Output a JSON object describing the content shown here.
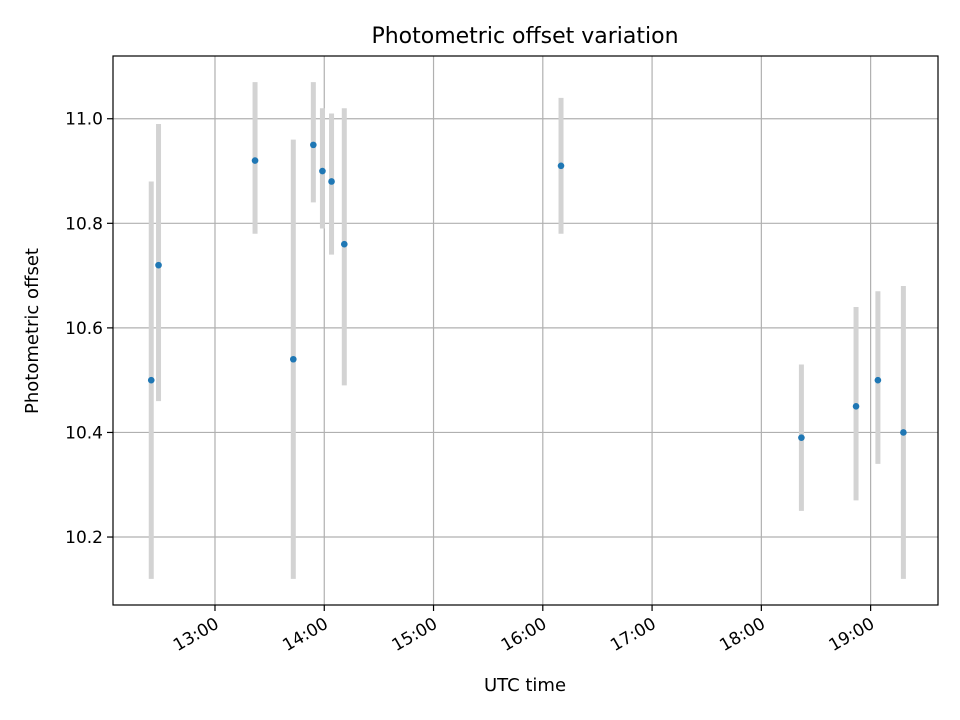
{
  "chart_data": {
    "type": "scatter",
    "title": "Photometric offset variation",
    "xlabel": "UTC time",
    "ylabel": "Photometric offset",
    "x_type": "time",
    "xlim": [
      "12:04",
      "19:37"
    ],
    "ylim": [
      10.07,
      11.12
    ],
    "x_ticks": [
      "13:00",
      "14:00",
      "15:00",
      "16:00",
      "17:00",
      "18:00",
      "19:00"
    ],
    "y_ticks": [
      10.2,
      10.4,
      10.6,
      10.8,
      11.0
    ],
    "y_tick_labels": [
      "10.2",
      "10.4",
      "10.6",
      "10.8",
      "11.0"
    ],
    "grid": true,
    "legend": "none",
    "point_color": "#1f77b4",
    "errorbar_color": "#d3d3d3",
    "series": [
      {
        "points": [
          {
            "t": "12:25",
            "y": 10.5,
            "ylo": 10.12,
            "yhi": 10.88
          },
          {
            "t": "12:29",
            "y": 10.72,
            "ylo": 10.46,
            "yhi": 10.99
          },
          {
            "t": "13:22",
            "y": 10.92,
            "ylo": 10.78,
            "yhi": 11.07
          },
          {
            "t": "13:43",
            "y": 10.54,
            "ylo": 10.12,
            "yhi": 10.96
          },
          {
            "t": "13:54",
            "y": 10.95,
            "ylo": 10.84,
            "yhi": 11.07
          },
          {
            "t": "13:59",
            "y": 10.9,
            "ylo": 10.79,
            "yhi": 11.02
          },
          {
            "t": "14:04",
            "y": 10.88,
            "ylo": 10.74,
            "yhi": 11.01
          },
          {
            "t": "14:11",
            "y": 10.76,
            "ylo": 10.49,
            "yhi": 11.02
          },
          {
            "t": "16:10",
            "y": 10.91,
            "ylo": 10.78,
            "yhi": 11.04
          },
          {
            "t": "18:22",
            "y": 10.39,
            "ylo": 10.25,
            "yhi": 10.53
          },
          {
            "t": "18:52",
            "y": 10.45,
            "ylo": 10.27,
            "yhi": 10.64
          },
          {
            "t": "19:04",
            "y": 10.5,
            "ylo": 10.34,
            "yhi": 10.67
          },
          {
            "t": "19:18",
            "y": 10.4,
            "ylo": 10.12,
            "yhi": 10.68
          }
        ]
      }
    ]
  }
}
